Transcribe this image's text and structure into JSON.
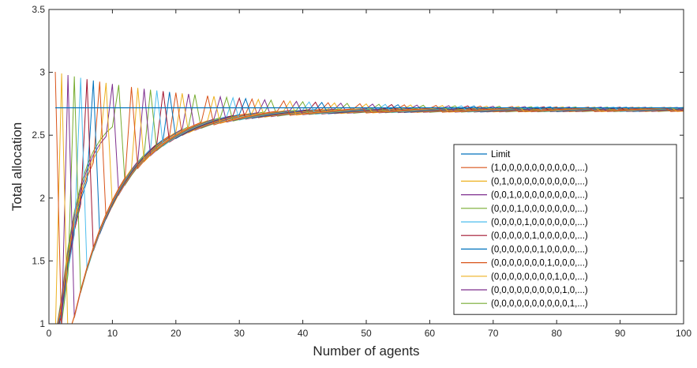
{
  "chart_data": {
    "type": "line",
    "title": "",
    "xlabel": "Number of agents",
    "ylabel": "Total allocation",
    "xlim": [
      0,
      100
    ],
    "ylim": [
      1,
      3.5
    ],
    "xticks": [
      "0",
      "10",
      "20",
      "30",
      "40",
      "50",
      "60",
      "70",
      "80",
      "90",
      "100"
    ],
    "yticks": [
      "1",
      "1.5",
      "2",
      "2.5",
      "3",
      "3.5"
    ],
    "grid": false,
    "legend_position": "bottom-right",
    "limit": {
      "name": "Limit",
      "value": 2.718,
      "color": "#0072BD"
    },
    "series": [
      {
        "name": "(1,0,0,0,0,0,0,0,0,0,0,...)",
        "offset": 1,
        "color": "#D95319"
      },
      {
        "name": "(0,1,0,0,0,0,0,0,0,0,0,...)",
        "offset": 2,
        "color": "#EDB120"
      },
      {
        "name": "(0,0,1,0,0,0,0,0,0,0,0,...)",
        "offset": 3,
        "color": "#7E2F8E"
      },
      {
        "name": "(0,0,0,1,0,0,0,0,0,0,0,...)",
        "offset": 4,
        "color": "#77AC30"
      },
      {
        "name": "(0,0,0,0,1,0,0,0,0,0,0,...)",
        "offset": 5,
        "color": "#4DBEEE"
      },
      {
        "name": "(0,0,0,0,0,1,0,0,0,0,0,...)",
        "offset": 6,
        "color": "#A2142F"
      },
      {
        "name": "(0,0,0,0,0,0,1,0,0,0,0,...)",
        "offset": 7,
        "color": "#0072BD"
      },
      {
        "name": "(0,0,0,0,0,0,0,1,0,0,0,...)",
        "offset": 8,
        "color": "#D95319"
      },
      {
        "name": "(0,0,0,0,0,0,0,0,1,0,0,...)",
        "offset": 9,
        "color": "#EDB120"
      },
      {
        "name": "(0,0,0,0,0,0,0,0,0,1,0,...)",
        "offset": 10,
        "color": "#7E2F8E"
      },
      {
        "name": "(0,0,0,0,0,0,0,0,0,0,1,...)",
        "offset": 11,
        "color": "#77AC30"
      }
    ],
    "cycle_length": 12
  }
}
